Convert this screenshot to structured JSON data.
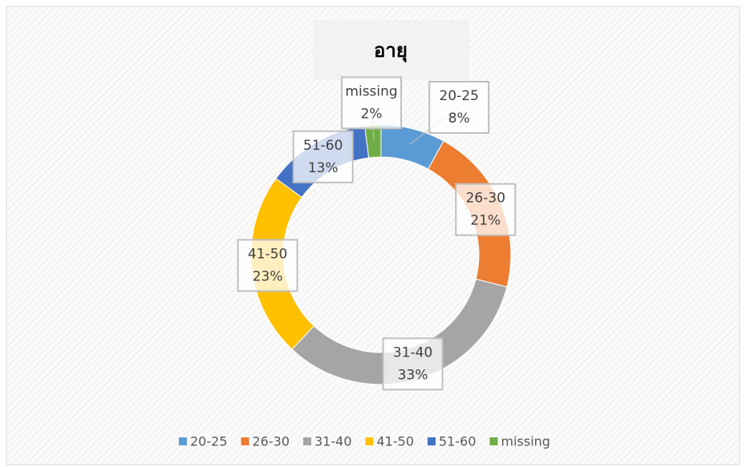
{
  "chart_data": {
    "type": "donut",
    "title": "อายุ",
    "categories": [
      "20-25",
      "26-30",
      "31-40",
      "41-50",
      "51-60",
      "missing"
    ],
    "values": [
      8,
      21,
      33,
      23,
      13,
      2
    ],
    "value_labels": [
      "8%",
      "21%",
      "33%",
      "23%",
      "13%",
      "2%"
    ],
    "colors": [
      "#5b9bd5",
      "#ed7d31",
      "#a5a5a5",
      "#ffc000",
      "#4472c4",
      "#70ad47"
    ],
    "legend": "bottom"
  }
}
